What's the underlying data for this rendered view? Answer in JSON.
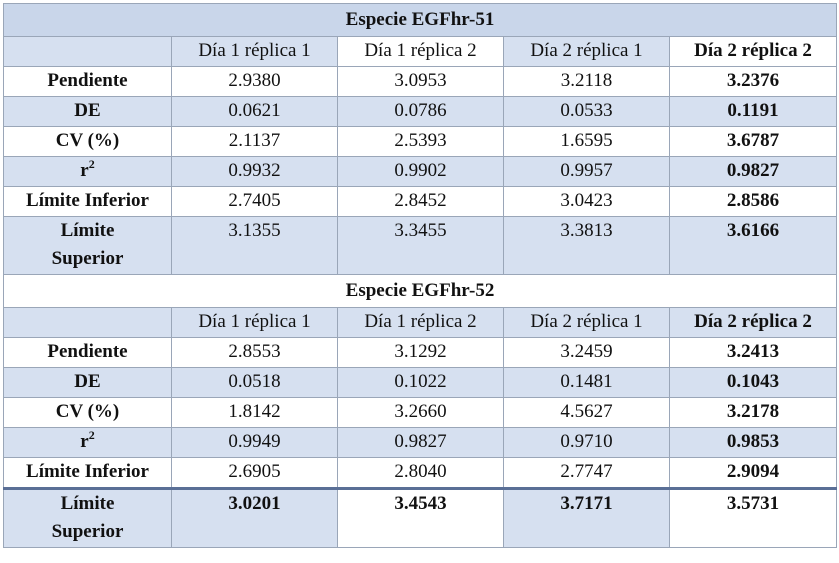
{
  "tables": [
    {
      "title": "Especie EGFhr-51",
      "headers": [
        "Día 1 réplica 1",
        "Día 1 réplica 2",
        "Día 2 réplica 1",
        "Día 2 réplica 2"
      ],
      "rows": [
        {
          "label": "Pendiente",
          "values": [
            "2.9380",
            "3.0953",
            "3.2118",
            "3.2376"
          ]
        },
        {
          "label": "DE",
          "values": [
            "0.0621",
            "0.0786",
            "0.0533",
            "0.1191"
          ]
        },
        {
          "label": "CV (%)",
          "values": [
            "2.1137",
            "2.5393",
            "1.6595",
            "3.6787"
          ]
        },
        {
          "label": "r",
          "label_sup": "2",
          "values": [
            "0.9932",
            "0.9902",
            "0.9957",
            "0.9827"
          ]
        },
        {
          "label": "Límite Inferior",
          "values": [
            "2.7405",
            "2.8452",
            "3.0423",
            "2.8586"
          ]
        },
        {
          "label_line1": "Límite",
          "label_line2": "Superior",
          "values": [
            "3.1355",
            "3.3455",
            "3.3813",
            "3.6166"
          ]
        }
      ]
    },
    {
      "title": "Especie EGFhr-52",
      "headers": [
        "Día 1 réplica 1",
        "Día 1 réplica 2",
        "Día 2 réplica 1",
        "Día 2 réplica 2"
      ],
      "rows": [
        {
          "label": "Pendiente",
          "values": [
            "2.8553",
            "3.1292",
            "3.2459",
            "3.2413"
          ]
        },
        {
          "label": "DE",
          "values": [
            "0.0518",
            "0.1022",
            "0.1481",
            "0.1043"
          ]
        },
        {
          "label": "CV (%)",
          "values": [
            "1.8142",
            "3.2660",
            "4.5627",
            "3.2178"
          ]
        },
        {
          "label": "r",
          "label_sup": "2",
          "values": [
            "0.9949",
            "0.9827",
            "0.9710",
            "0.9853"
          ]
        },
        {
          "label": "Límite Inferior",
          "values": [
            "2.6905",
            "2.8040",
            "2.7747",
            "2.9094"
          ]
        },
        {
          "label_line1": "Límite",
          "label_line2": "Superior",
          "values": [
            "3.0201",
            "3.4543",
            "3.7171",
            "3.5731"
          ]
        }
      ]
    }
  ]
}
